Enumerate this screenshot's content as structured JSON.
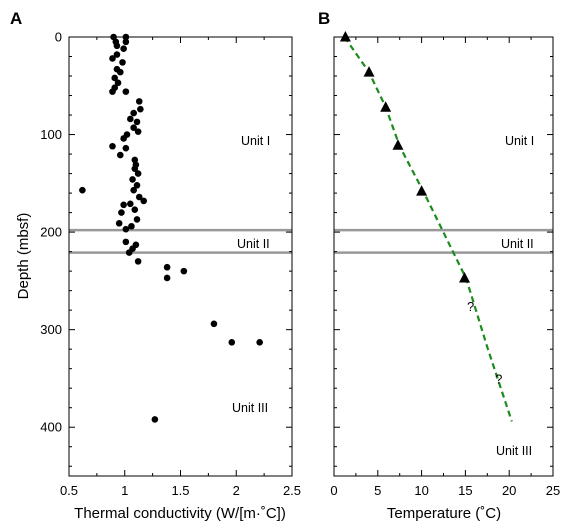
{
  "chart_data": [
    {
      "type": "scatter",
      "panel_label": "A",
      "xlabel": "Thermal conductivity (W/[m·˚C])",
      "ylabel": "Depth (mbsf)",
      "xlim": [
        0.5,
        2.5
      ],
      "ylim": [
        0,
        450
      ],
      "y_inverted": true,
      "xticks": [
        "0.5",
        "1",
        "1.5",
        "2",
        "2.5"
      ],
      "yticks": [
        "0",
        "100",
        "200",
        "300",
        "400"
      ],
      "marker": "circle",
      "marker_color": "#000000",
      "points": [
        {
          "x": 0.9,
          "y": 0
        },
        {
          "x": 1.01,
          "y": 0
        },
        {
          "x": 0.92,
          "y": 5
        },
        {
          "x": 1.01,
          "y": 5
        },
        {
          "x": 0.93,
          "y": 9
        },
        {
          "x": 0.99,
          "y": 12
        },
        {
          "x": 0.93,
          "y": 18
        },
        {
          "x": 0.89,
          "y": 22
        },
        {
          "x": 0.98,
          "y": 26
        },
        {
          "x": 0.93,
          "y": 33
        },
        {
          "x": 0.96,
          "y": 36
        },
        {
          "x": 0.91,
          "y": 42
        },
        {
          "x": 0.94,
          "y": 47
        },
        {
          "x": 0.91,
          "y": 52
        },
        {
          "x": 0.89,
          "y": 56
        },
        {
          "x": 1.01,
          "y": 56
        },
        {
          "x": 1.13,
          "y": 66
        },
        {
          "x": 1.14,
          "y": 74
        },
        {
          "x": 1.08,
          "y": 78
        },
        {
          "x": 1.05,
          "y": 84
        },
        {
          "x": 1.11,
          "y": 87
        },
        {
          "x": 1.08,
          "y": 93
        },
        {
          "x": 1.12,
          "y": 97
        },
        {
          "x": 1.02,
          "y": 100
        },
        {
          "x": 0.99,
          "y": 104
        },
        {
          "x": 0.89,
          "y": 112
        },
        {
          "x": 1.01,
          "y": 114
        },
        {
          "x": 0.96,
          "y": 121
        },
        {
          "x": 1.09,
          "y": 126
        },
        {
          "x": 1.1,
          "y": 131
        },
        {
          "x": 1.09,
          "y": 135
        },
        {
          "x": 1.12,
          "y": 140
        },
        {
          "x": 1.07,
          "y": 146
        },
        {
          "x": 1.11,
          "y": 152
        },
        {
          "x": 1.08,
          "y": 157
        },
        {
          "x": 0.62,
          "y": 157
        },
        {
          "x": 1.13,
          "y": 164
        },
        {
          "x": 1.17,
          "y": 168
        },
        {
          "x": 1.05,
          "y": 171
        },
        {
          "x": 0.99,
          "y": 172
        },
        {
          "x": 1.09,
          "y": 177
        },
        {
          "x": 0.97,
          "y": 180
        },
        {
          "x": 1.11,
          "y": 187
        },
        {
          "x": 0.95,
          "y": 191
        },
        {
          "x": 1.06,
          "y": 194
        },
        {
          "x": 1.01,
          "y": 197
        },
        {
          "x": 1.01,
          "y": 210
        },
        {
          "x": 1.1,
          "y": 213
        },
        {
          "x": 1.07,
          "y": 217
        },
        {
          "x": 1.04,
          "y": 221
        },
        {
          "x": 1.12,
          "y": 230
        },
        {
          "x": 1.38,
          "y": 236
        },
        {
          "x": 1.53,
          "y": 240
        },
        {
          "x": 1.38,
          "y": 247
        },
        {
          "x": 1.8,
          "y": 294
        },
        {
          "x": 1.96,
          "y": 313
        },
        {
          "x": 2.21,
          "y": 313
        },
        {
          "x": 1.27,
          "y": 392
        }
      ],
      "boundaries_depth": [
        198,
        221
      ],
      "boundary_color": "#999999",
      "annotations": [
        "Unit I",
        "Unit II",
        "Unit III"
      ]
    },
    {
      "type": "scatter",
      "panel_label": "B",
      "xlabel": "Temperature (˚C)",
      "xlim": [
        0,
        25
      ],
      "ylim": [
        0,
        450
      ],
      "y_inverted": true,
      "xticks": [
        "0",
        "5",
        "10",
        "15",
        "20",
        "25"
      ],
      "marker": "triangle",
      "marker_color": "#000000",
      "points": [
        {
          "x": 1.3,
          "y": 0
        },
        {
          "x": 4.0,
          "y": 36
        },
        {
          "x": 5.9,
          "y": 72
        },
        {
          "x": 7.3,
          "y": 111
        },
        {
          "x": 10.0,
          "y": 158
        },
        {
          "x": 14.9,
          "y": 247
        }
      ],
      "trend_line": {
        "style": "dashed",
        "color": "#1a8c1a",
        "points": [
          {
            "x": 1.2,
            "y": 0
          },
          {
            "x": 4.0,
            "y": 36
          },
          {
            "x": 5.9,
            "y": 72
          },
          {
            "x": 7.5,
            "y": 112
          },
          {
            "x": 10.3,
            "y": 160
          },
          {
            "x": 15.1,
            "y": 248
          },
          {
            "x": 17.5,
            "y": 318
          },
          {
            "x": 20.3,
            "y": 394
          }
        ]
      },
      "question_marks": [
        {
          "x": 15.6,
          "y": 281
        },
        {
          "x": 18.8,
          "y": 355
        }
      ],
      "question_mark_text": "?",
      "boundaries_depth": [
        198,
        221
      ],
      "boundary_color": "#999999",
      "annotations": [
        "Unit I",
        "Unit II",
        "Unit III"
      ]
    }
  ]
}
